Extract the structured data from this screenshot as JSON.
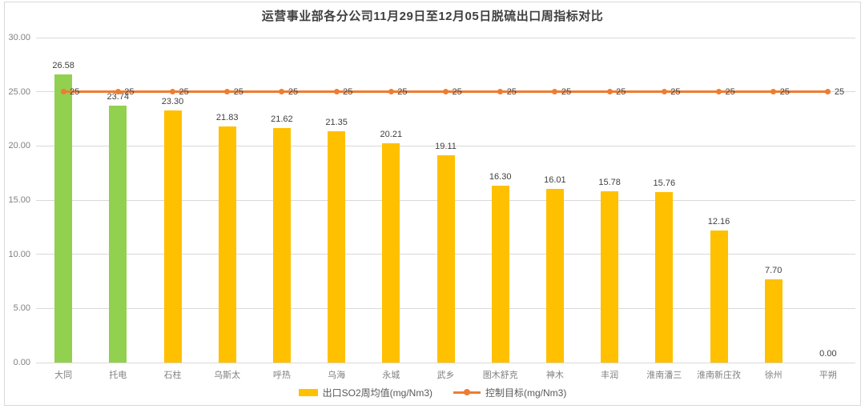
{
  "chart_data": {
    "type": "bar",
    "title": "运营事业部各分公司11月29日至12月05日脱硫出口周指标对比",
    "categories": [
      "大同",
      "托电",
      "石柱",
      "乌斯太",
      "呼热",
      "乌海",
      "永城",
      "武乡",
      "图木舒克",
      "神木",
      "丰润",
      "淮南潘三",
      "淮南新庄孜",
      "徐州",
      "平朔"
    ],
    "series": [
      {
        "name": "出口SO2周均值(mg/Nm3)",
        "type": "bar",
        "values": [
          26.58,
          23.74,
          23.3,
          21.83,
          21.62,
          21.35,
          20.21,
          19.11,
          16.3,
          16.01,
          15.78,
          15.76,
          12.16,
          7.7,
          0.0
        ],
        "value_labels": [
          "26.58",
          "23.74",
          "23.30",
          "21.83",
          "21.62",
          "21.35",
          "20.21",
          "19.11",
          "16.30",
          "16.01",
          "15.78",
          "15.76",
          "12.16",
          "7.70",
          "0.00"
        ],
        "bar_colors": [
          "#92D050",
          "#92D050",
          "#FFC000",
          "#FFC000",
          "#FFC000",
          "#FFC000",
          "#FFC000",
          "#FFC000",
          "#FFC000",
          "#FFC000",
          "#FFC000",
          "#FFC000",
          "#FFC000",
          "#FFC000",
          "#FFC000"
        ]
      },
      {
        "name": "控制目标(mg/Nm3)",
        "type": "line",
        "values": [
          25,
          25,
          25,
          25,
          25,
          25,
          25,
          25,
          25,
          25,
          25,
          25,
          25,
          25,
          25
        ],
        "point_labels": [
          "25",
          "25",
          "25",
          "25",
          "25",
          "25",
          "25",
          "25",
          "25",
          "25",
          "25",
          "25",
          "25",
          "25",
          "25"
        ],
        "color": "#ED7D31"
      }
    ],
    "y_axis": {
      "min": 0,
      "max": 30,
      "step": 5,
      "tick_labels": [
        "0.00",
        "5.00",
        "10.00",
        "15.00",
        "20.00",
        "25.00",
        "30.00"
      ]
    },
    "grid": true,
    "legend_position": "bottom",
    "colors": {
      "bar_default": "#FFC000",
      "bar_highlight": "#92D050",
      "target_line": "#ED7D31",
      "gridline": "#D9D9D9",
      "frame": "#D9D9D9",
      "axis_text": "#808080",
      "value_text": "#404040",
      "title_text": "#404040",
      "legend_text": "#595959"
    }
  }
}
